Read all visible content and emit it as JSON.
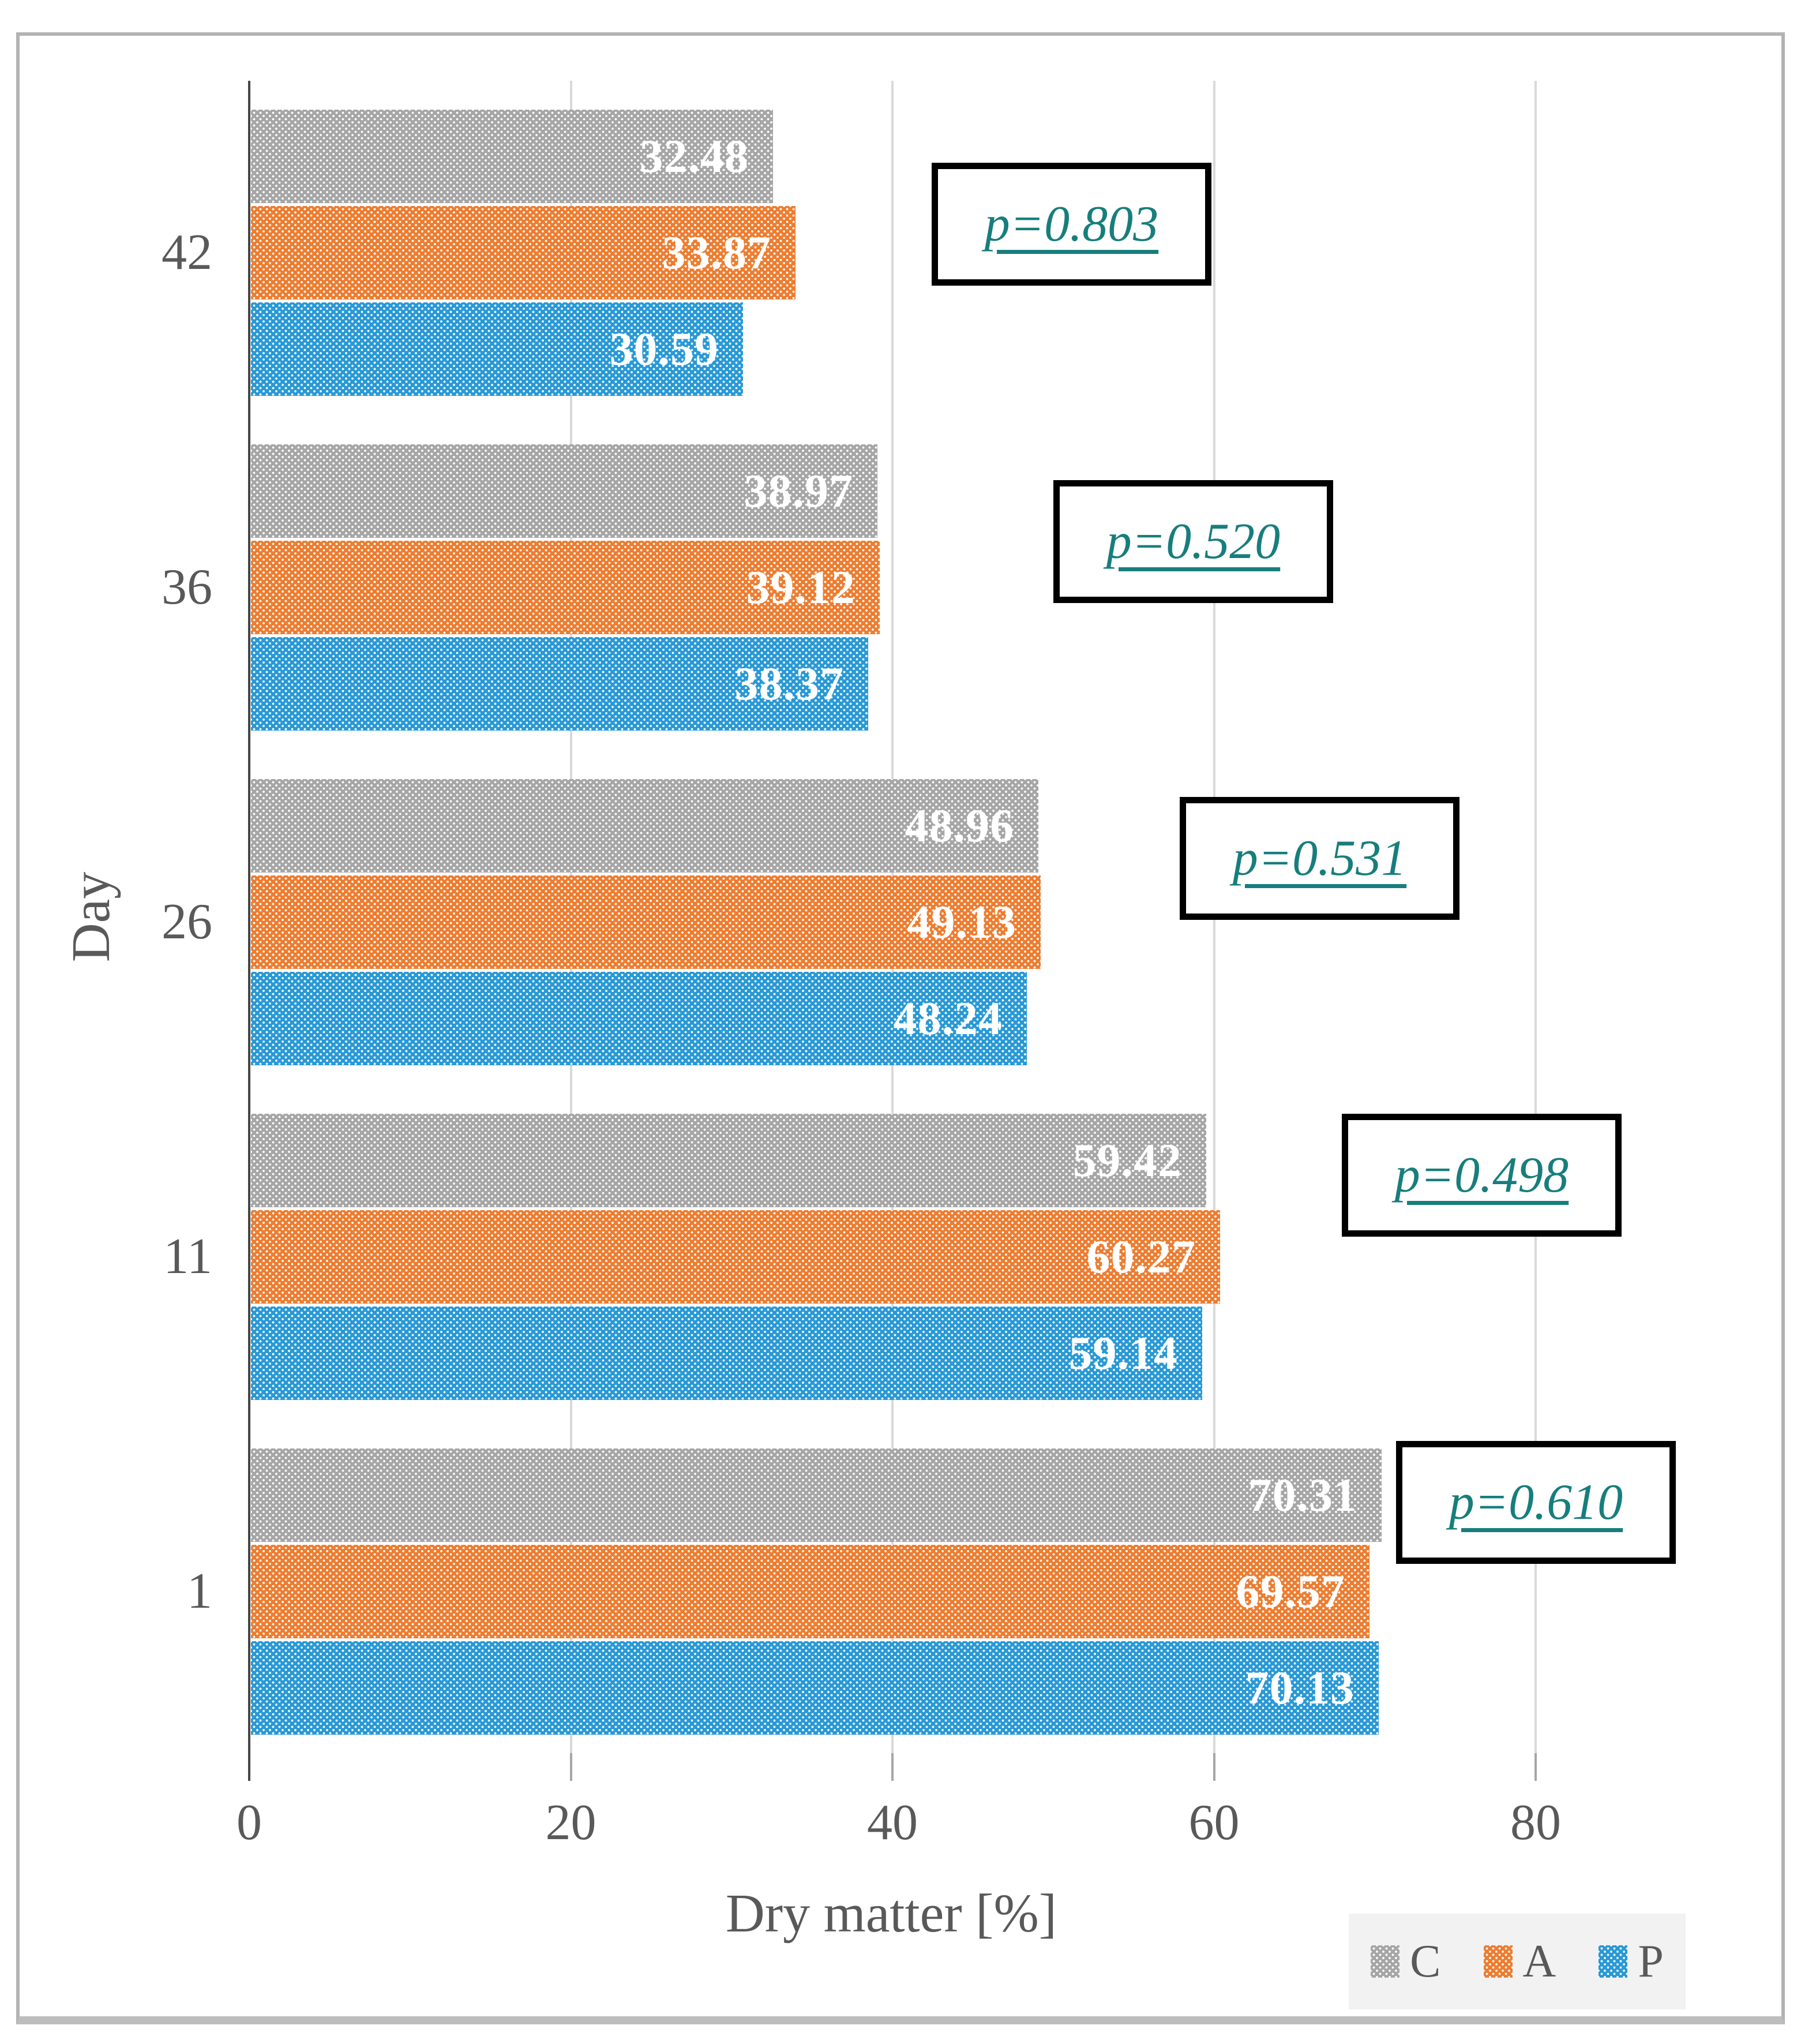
{
  "chart_data": {
    "type": "bar",
    "orientation": "horizontal",
    "title": "",
    "xlabel": "Dry matter [%]",
    "ylabel": "Day",
    "xlim": [
      0,
      90
    ],
    "xticks": [
      0,
      20,
      40,
      60,
      80
    ],
    "grid": "vertical",
    "legend_position": "bottom-right",
    "categories": [
      "42",
      "36",
      "26",
      "11",
      "1"
    ],
    "series": [
      {
        "name": "C",
        "color": "#a6a6a6",
        "values": [
          32.48,
          38.97,
          48.96,
          59.42,
          70.31
        ]
      },
      {
        "name": "A",
        "color": "#ed7d31",
        "values": [
          33.87,
          39.12,
          49.13,
          60.27,
          69.57
        ]
      },
      {
        "name": "P",
        "color": "#2999d6",
        "values": [
          30.59,
          38.37,
          48.24,
          59.14,
          70.13
        ]
      }
    ],
    "annotations": [
      {
        "category": "42",
        "label": "p=0.803"
      },
      {
        "category": "36",
        "label": "p=0.520"
      },
      {
        "category": "26",
        "label": "p=0.531"
      },
      {
        "category": "11",
        "label": "p=0.498"
      },
      {
        "category": "1",
        "label": "p=0.610"
      }
    ],
    "annotation_color": "#177e7c",
    "value_label_color": "#ffffff",
    "axis_text_color": "#595959"
  }
}
